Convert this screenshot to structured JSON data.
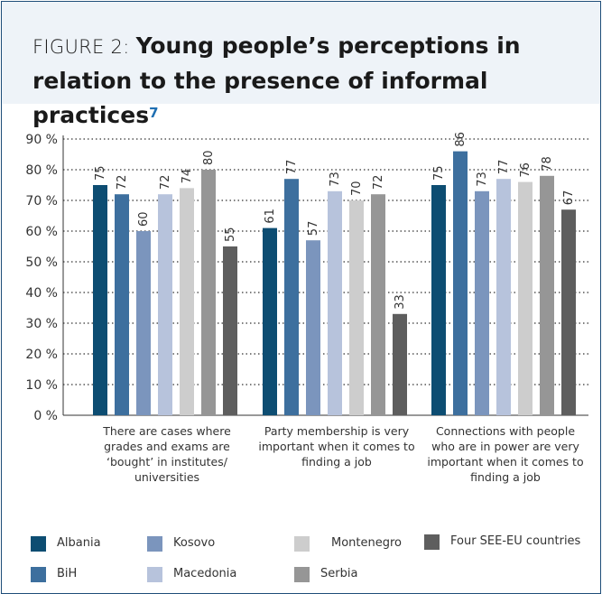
{
  "figure": {
    "prefix": "FIGURE 2: ",
    "title": "Young people’s perceptions in relation to the presence of informal practices",
    "footnote": "7"
  },
  "chart_data": {
    "type": "bar",
    "ylim": [
      0,
      90
    ],
    "yticks": [
      "0 %",
      "10 %",
      "20 %",
      "30 %",
      "40 %",
      "50 %",
      "60 %",
      "70 %",
      "80 %",
      "90 %"
    ],
    "grid": true,
    "legend_position": "bottom",
    "categories": [
      [
        "There are cases where",
        "grades and exams are",
        "‘bought’ in institutes/",
        "universities"
      ],
      [
        "Party membership is very",
        "important when it comes to",
        "finding a job"
      ],
      [
        "Connections with people",
        "who are in power are very",
        "important when it comes to",
        "finding a job"
      ]
    ],
    "series": [
      {
        "name": "Albania",
        "color": "#0d4d72",
        "values": [
          75,
          61,
          75
        ]
      },
      {
        "name": "BiH",
        "color": "#3d6f9e",
        "values": [
          72,
          77,
          86
        ]
      },
      {
        "name": "Kosovo",
        "color": "#7b95bd",
        "values": [
          60,
          57,
          73
        ]
      },
      {
        "name": "Macedonia",
        "color": "#b7c3dc",
        "values": [
          72,
          73,
          77
        ]
      },
      {
        "name": "Montenegro",
        "color": "#cdcdcd",
        "values": [
          74,
          70,
          76
        ]
      },
      {
        "name": "Serbia",
        "color": "#969696",
        "values": [
          80,
          72,
          78
        ]
      },
      {
        "name": "Four SEE-EU countries",
        "color": "#5e5e5e",
        "values": [
          55,
          33,
          67
        ]
      }
    ]
  }
}
